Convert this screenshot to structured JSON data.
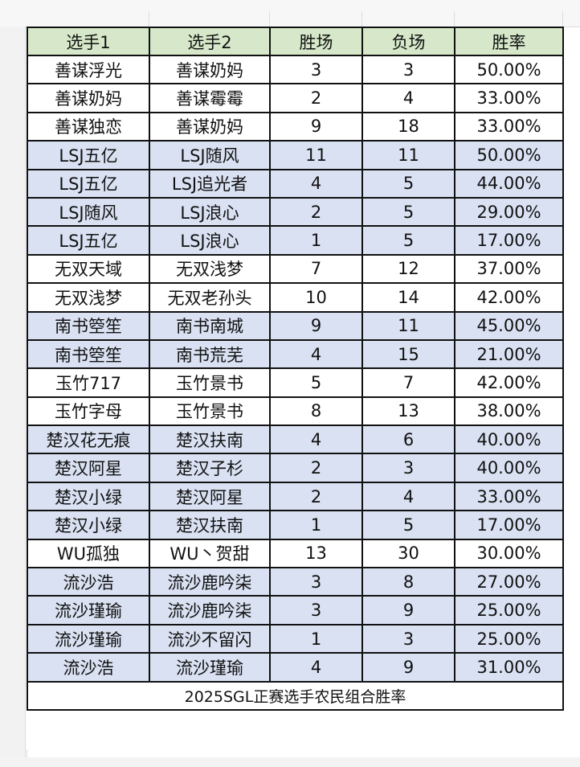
{
  "headers": [
    "选手1",
    "选手2",
    "胜场",
    "负场",
    "胜率"
  ],
  "rows": [
    {
      "p1": "善谋浮光",
      "p2": "善谋奶妈",
      "w": "3",
      "l": "3",
      "rate": "50.00%",
      "shade": "white"
    },
    {
      "p1": "善谋奶妈",
      "p2": "善谋霉霉",
      "w": "2",
      "l": "4",
      "rate": "33.00%",
      "shade": "white"
    },
    {
      "p1": "善谋独恋",
      "p2": "善谋奶妈",
      "w": "9",
      "l": "18",
      "rate": "33.00%",
      "shade": "white"
    },
    {
      "p1": "LSJ五亿",
      "p2": "LSJ随风",
      "w": "11",
      "l": "11",
      "rate": "50.00%",
      "shade": "blue"
    },
    {
      "p1": "LSJ五亿",
      "p2": "LSJ追光者",
      "w": "4",
      "l": "5",
      "rate": "44.00%",
      "shade": "blue"
    },
    {
      "p1": "LSJ随风",
      "p2": "LSJ浪心",
      "w": "2",
      "l": "5",
      "rate": "29.00%",
      "shade": "blue"
    },
    {
      "p1": "LSJ五亿",
      "p2": "LSJ浪心",
      "w": "1",
      "l": "5",
      "rate": "17.00%",
      "shade": "blue"
    },
    {
      "p1": "无双天域",
      "p2": "无双浅梦",
      "w": "7",
      "l": "12",
      "rate": "37.00%",
      "shade": "white"
    },
    {
      "p1": "无双浅梦",
      "p2": "无双老孙头",
      "w": "10",
      "l": "14",
      "rate": "42.00%",
      "shade": "white"
    },
    {
      "p1": "南书箜笙",
      "p2": "南书南城",
      "w": "9",
      "l": "11",
      "rate": "45.00%",
      "shade": "blue"
    },
    {
      "p1": "南书箜笙",
      "p2": "南书荒芜",
      "w": "4",
      "l": "15",
      "rate": "21.00%",
      "shade": "blue"
    },
    {
      "p1": "玉竹717",
      "p2": "玉竹景书",
      "w": "5",
      "l": "7",
      "rate": "42.00%",
      "shade": "white"
    },
    {
      "p1": "玉竹字母",
      "p2": "玉竹景书",
      "w": "8",
      "l": "13",
      "rate": "38.00%",
      "shade": "white"
    },
    {
      "p1": "楚汉花无痕",
      "p2": "楚汉扶南",
      "w": "4",
      "l": "6",
      "rate": "40.00%",
      "shade": "blue"
    },
    {
      "p1": "楚汉阿星",
      "p2": "楚汉子杉",
      "w": "2",
      "l": "3",
      "rate": "40.00%",
      "shade": "blue"
    },
    {
      "p1": "楚汉小绿",
      "p2": "楚汉阿星",
      "w": "2",
      "l": "4",
      "rate": "33.00%",
      "shade": "blue"
    },
    {
      "p1": "楚汉小绿",
      "p2": "楚汉扶南",
      "w": "1",
      "l": "5",
      "rate": "17.00%",
      "shade": "blue"
    },
    {
      "p1": "WU孤独",
      "p2": "WU丶贺甜",
      "w": "13",
      "l": "30",
      "rate": "30.00%",
      "shade": "white"
    },
    {
      "p1": "流沙浩",
      "p2": "流沙鹿吟柒",
      "w": "3",
      "l": "8",
      "rate": "27.00%",
      "shade": "blue"
    },
    {
      "p1": "流沙瑾瑜",
      "p2": "流沙鹿吟柒",
      "w": "3",
      "l": "9",
      "rate": "25.00%",
      "shade": "blue"
    },
    {
      "p1": "流沙瑾瑜",
      "p2": "流沙不留闪",
      "w": "1",
      "l": "3",
      "rate": "25.00%",
      "shade": "blue"
    },
    {
      "p1": "流沙浩",
      "p2": "流沙瑾瑜",
      "w": "4",
      "l": "9",
      "rate": "31.00%",
      "shade": "blue"
    }
  ],
  "caption": "2025SGL正赛选手农民组合胜率",
  "colors": {
    "header_bg": "#d6e8c9",
    "blue_row": "#d9e1f2",
    "border": "#111111"
  }
}
